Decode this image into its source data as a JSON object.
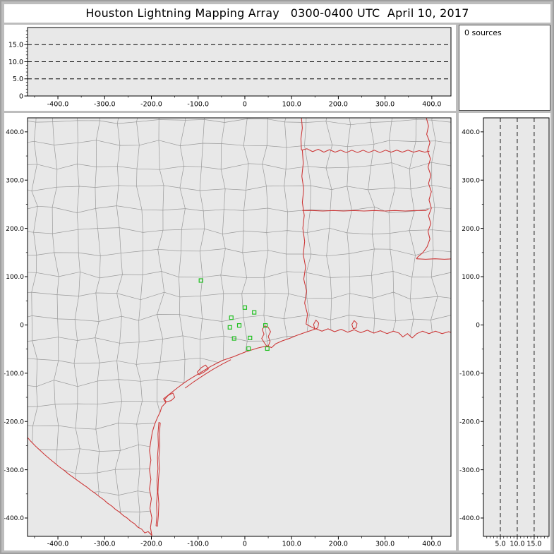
{
  "title": "Houston Lightning Mapping Array   0300-0400 UTC  April 10, 2017",
  "status_panel": {
    "text": "0 sources"
  },
  "colors": {
    "window_bg": "#bdbdbd",
    "window_border": "#9e9e9e",
    "panel_bg": "#ffffff",
    "plot_bg": "#e8e8e8",
    "axis": "#000000",
    "text": "#000000",
    "county_line": "#999999",
    "state_line": "#cc3333",
    "station": "#22c022"
  },
  "chart_data": {
    "type": "scatter",
    "title": "Houston Lightning Mapping Array",
    "time_window_utc": "0300-0400",
    "date": "April 10, 2017",
    "source_count": 0,
    "sources": [],
    "units": "km",
    "panels": {
      "alt_vs_ew": {
        "x_axis": {
          "label_ticks": [
            -400,
            -300,
            -200,
            -100,
            0,
            100,
            200,
            300,
            400
          ],
          "labels": [
            "-400.0",
            "-300.0",
            "-200.0",
            "-100.0",
            "0",
            "100.0",
            "200.0",
            "300.0",
            "400.0"
          ],
          "range_km": [
            -465,
            441
          ]
        },
        "y_axis": {
          "label_ticks": [
            0,
            5,
            10,
            15
          ],
          "labels": [
            "0",
            "5.0",
            "10.0",
            "15.0"
          ],
          "range_km": [
            0,
            20
          ]
        },
        "dashed_levels_km": [
          5,
          10,
          15
        ]
      },
      "plan_view": {
        "x_axis": {
          "label_ticks": [
            -400,
            -300,
            -200,
            -100,
            0,
            100,
            200,
            300,
            400
          ],
          "labels": [
            "-400.0",
            "-300.0",
            "-200.0",
            "-100.0",
            "0",
            "100.0",
            "200.0",
            "300.0",
            "400.0"
          ],
          "range_km": [
            -465,
            441
          ]
        },
        "y_axis": {
          "label_ticks": [
            400,
            300,
            200,
            100,
            0,
            -100,
            -200,
            -300,
            -400
          ],
          "labels": [
            "400.0",
            "300.0",
            "200.0",
            "100.0",
            "0",
            "-100.0",
            "-200.0",
            "-300.0",
            "-400.0"
          ],
          "range_km": [
            -438,
            429
          ]
        },
        "stations_km": [
          [
            -94,
            92
          ],
          [
            0,
            36
          ],
          [
            20,
            26
          ],
          [
            -29,
            15
          ],
          [
            -32,
            -5
          ],
          [
            -12,
            -1
          ],
          [
            -23,
            -28
          ],
          [
            11,
            -27
          ],
          [
            44,
            -1
          ],
          [
            8,
            -49
          ],
          [
            48,
            -49
          ]
        ]
      },
      "alt_vs_ns": {
        "x_axis": {
          "label_ticks": [
            5,
            10,
            15
          ],
          "labels": [
            "5.0",
            "10.0",
            "15.0"
          ],
          "range_km": [
            0,
            19.4
          ]
        },
        "y_axis": {
          "label_ticks": [
            400,
            300,
            200,
            100,
            0,
            -100,
            -200,
            -300,
            -400
          ],
          "labels": [
            "400.0",
            "300.0",
            "200.0",
            "100.0",
            "0",
            "-100.0",
            "-200.0",
            "-300.0",
            "-400.0"
          ],
          "range_km": [
            -438,
            429
          ]
        },
        "dashed_levels_km": [
          5,
          10,
          15
        ]
      }
    },
    "map_layers": {
      "coastline_km": [
        [
          443,
          -16
        ],
        [
          436,
          -14
        ],
        [
          422,
          -18
        ],
        [
          408,
          -13
        ],
        [
          394,
          -18
        ],
        [
          380,
          -13
        ],
        [
          368,
          -18
        ],
        [
          358,
          -27
        ],
        [
          348,
          -18
        ],
        [
          338,
          -25
        ],
        [
          330,
          -17
        ],
        [
          318,
          -13
        ],
        [
          304,
          -18
        ],
        [
          290,
          -12
        ],
        [
          276,
          -17
        ],
        [
          262,
          -11
        ],
        [
          248,
          -16
        ],
        [
          234,
          -10
        ],
        [
          220,
          -15
        ],
        [
          206,
          -9
        ],
        [
          192,
          -14
        ],
        [
          178,
          -8
        ],
        [
          165,
          -13
        ],
        [
          152,
          -8
        ],
        [
          140,
          -12
        ],
        [
          125,
          -17
        ],
        [
          110,
          -22
        ],
        [
          95,
          -28
        ],
        [
          80,
          -33
        ],
        [
          66,
          -39
        ],
        [
          57,
          -47
        ],
        [
          50,
          -44
        ],
        [
          40,
          -45
        ],
        [
          27,
          -48
        ],
        [
          14,
          -52
        ],
        [
          1,
          -56
        ],
        [
          -12,
          -61
        ],
        [
          -25,
          -66
        ],
        [
          -37,
          -70
        ],
        [
          -49,
          -74
        ],
        [
          -61,
          -80
        ],
        [
          -73,
          -86
        ],
        [
          -85,
          -93
        ],
        [
          -97,
          -100
        ],
        [
          -109,
          -107
        ],
        [
          -121,
          -114
        ],
        [
          -133,
          -122
        ],
        [
          -145,
          -131
        ],
        [
          -157,
          -140
        ],
        [
          -166,
          -147
        ],
        [
          -174,
          -153
        ],
        [
          -169,
          -161
        ],
        [
          -178,
          -170
        ],
        [
          -181,
          -180
        ],
        [
          -187,
          -192
        ],
        [
          -193,
          -206
        ],
        [
          -198,
          -222
        ],
        [
          -201,
          -240
        ],
        [
          -204,
          -260
        ],
        [
          -201,
          -280
        ],
        [
          -204,
          -300
        ],
        [
          -201,
          -320
        ],
        [
          -204,
          -340
        ],
        [
          -200,
          -360
        ],
        [
          -203,
          -380
        ],
        [
          -199,
          -400
        ],
        [
          -202,
          -420
        ],
        [
          -199,
          -436
        ]
      ],
      "mexico_coast_km": [
        [
          -199,
          -436
        ],
        [
          -205,
          -450
        ],
        [
          -212,
          -466
        ]
      ],
      "rio_grande_km": [
        [
          -199,
          -436
        ],
        [
          -207,
          -428
        ],
        [
          -214,
          -431
        ],
        [
          -221,
          -423
        ],
        [
          -229,
          -419
        ],
        [
          -236,
          -412
        ],
        [
          -244,
          -407
        ],
        [
          -252,
          -400
        ],
        [
          -260,
          -395
        ],
        [
          -268,
          -388
        ],
        [
          -277,
          -382
        ],
        [
          -285,
          -375
        ],
        [
          -294,
          -369
        ],
        [
          -302,
          -362
        ],
        [
          -311,
          -356
        ],
        [
          -320,
          -349
        ],
        [
          -329,
          -343
        ],
        [
          -338,
          -336
        ],
        [
          -347,
          -330
        ],
        [
          -357,
          -323
        ],
        [
          -367,
          -316
        ],
        [
          -377,
          -309
        ],
        [
          -387,
          -301
        ],
        [
          -397,
          -294
        ],
        [
          -407,
          -286
        ],
        [
          -417,
          -278
        ],
        [
          -428,
          -269
        ],
        [
          -438,
          -260
        ],
        [
          -448,
          -251
        ],
        [
          -458,
          -241
        ],
        [
          -466,
          -232
        ]
      ],
      "barrier_island_km": [
        [
          -184,
          -202
        ],
        [
          -186,
          -226
        ],
        [
          -185,
          -250
        ],
        [
          -187,
          -274
        ],
        [
          -186,
          -298
        ],
        [
          -188,
          -322
        ],
        [
          -187,
          -346
        ],
        [
          -189,
          -370
        ],
        [
          -188,
          -394
        ],
        [
          -190,
          -416
        ],
        [
          -187,
          -417
        ],
        [
          -185,
          -395
        ],
        [
          -184,
          -371
        ],
        [
          -186,
          -347
        ],
        [
          -185,
          -323
        ],
        [
          -183,
          -299
        ],
        [
          -184,
          -275
        ],
        [
          -182,
          -251
        ],
        [
          -183,
          -227
        ],
        [
          -181,
          -203
        ]
      ],
      "offshore_islands_km": [
        [
          [
            -128,
            -131
          ],
          [
            -108,
            -117
          ],
          [
            -88,
            -104
          ],
          [
            -68,
            -92
          ],
          [
            -48,
            -81
          ],
          [
            -30,
            -72
          ]
        ]
      ],
      "bays_km": [
        [
          [
            50,
            -44
          ],
          [
            54,
            -34
          ],
          [
            50,
            -24
          ],
          [
            55,
            -14
          ],
          [
            50,
            -5
          ],
          [
            43,
            -2
          ],
          [
            37,
            -9
          ],
          [
            41,
            -19
          ],
          [
            36,
            -28
          ],
          [
            41,
            -36
          ],
          [
            46,
            -43
          ],
          [
            50,
            -44
          ]
        ],
        [
          [
            150,
            -9
          ],
          [
            147,
            1
          ],
          [
            152,
            10
          ],
          [
            158,
            4
          ],
          [
            156,
            -6
          ],
          [
            150,
            -9
          ]
        ],
        [
          [
            -172,
            -155
          ],
          [
            -164,
            -146
          ],
          [
            -154,
            -141
          ],
          [
            -150,
            -150
          ],
          [
            -158,
            -157
          ],
          [
            -168,
            -159
          ],
          [
            -172,
            -155
          ]
        ],
        [
          [
            -102,
            -98
          ],
          [
            -94,
            -89
          ],
          [
            -84,
            -83
          ],
          [
            -78,
            -91
          ],
          [
            -88,
            -98
          ],
          [
            -98,
            -103
          ],
          [
            -102,
            -98
          ]
        ],
        [
          [
            232,
            -8
          ],
          [
            229,
            1
          ],
          [
            234,
            9
          ],
          [
            240,
            3
          ],
          [
            238,
            -6
          ],
          [
            232,
            -8
          ]
        ]
      ],
      "state_borders_km": [
        [
          [
            121,
            430
          ],
          [
            123,
            408
          ],
          [
            120,
            386
          ],
          [
            121,
            362
          ]
        ],
        [
          [
            121,
            362
          ],
          [
            133,
            365
          ],
          [
            145,
            359
          ],
          [
            157,
            364
          ],
          [
            169,
            358
          ],
          [
            181,
            363
          ],
          [
            193,
            358
          ],
          [
            205,
            362
          ],
          [
            217,
            357
          ],
          [
            229,
            362
          ],
          [
            241,
            357
          ],
          [
            253,
            362
          ],
          [
            265,
            357
          ],
          [
            277,
            362
          ],
          [
            289,
            357
          ],
          [
            301,
            362
          ],
          [
            313,
            358
          ],
          [
            325,
            362
          ],
          [
            337,
            358
          ],
          [
            349,
            362
          ],
          [
            361,
            358
          ],
          [
            373,
            361
          ],
          [
            385,
            358
          ],
          [
            395,
            360
          ]
        ],
        [
          [
            123,
            362
          ],
          [
            125,
            335
          ],
          [
            122,
            308
          ],
          [
            126,
            281
          ],
          [
            123,
            254
          ],
          [
            127,
            227
          ],
          [
            124,
            200
          ],
          [
            128,
            173
          ],
          [
            125,
            146
          ],
          [
            130,
            120
          ],
          [
            126,
            95
          ],
          [
            132,
            70
          ],
          [
            128,
            45
          ],
          [
            134,
            22
          ],
          [
            131,
            2
          ],
          [
            138,
            -2
          ],
          [
            144,
            -5
          ],
          [
            150,
            -8
          ]
        ],
        [
          [
            123,
            237
          ],
          [
            145,
            237
          ],
          [
            167,
            236
          ],
          [
            189,
            237
          ],
          [
            211,
            236
          ],
          [
            233,
            237
          ],
          [
            255,
            236
          ],
          [
            277,
            237
          ],
          [
            299,
            236
          ],
          [
            321,
            237
          ],
          [
            343,
            236
          ],
          [
            365,
            237
          ],
          [
            387,
            237
          ],
          [
            393,
            240
          ]
        ],
        [
          [
            388,
            430
          ],
          [
            393,
            412
          ],
          [
            389,
            395
          ],
          [
            396,
            378
          ],
          [
            391,
            361
          ],
          [
            397,
            344
          ],
          [
            392,
            327
          ],
          [
            398,
            310
          ],
          [
            393,
            293
          ],
          [
            399,
            276
          ],
          [
            394,
            259
          ],
          [
            399,
            242
          ],
          [
            393,
            226
          ],
          [
            398,
            210
          ],
          [
            392,
            194
          ],
          [
            396,
            178
          ],
          [
            390,
            162
          ],
          [
            381,
            150
          ],
          [
            370,
            141
          ],
          [
            367,
            137
          ]
        ],
        [
          [
            367,
            137
          ],
          [
            387,
            136
          ],
          [
            407,
            137
          ],
          [
            427,
            136
          ],
          [
            446,
            137
          ]
        ]
      ]
    }
  }
}
